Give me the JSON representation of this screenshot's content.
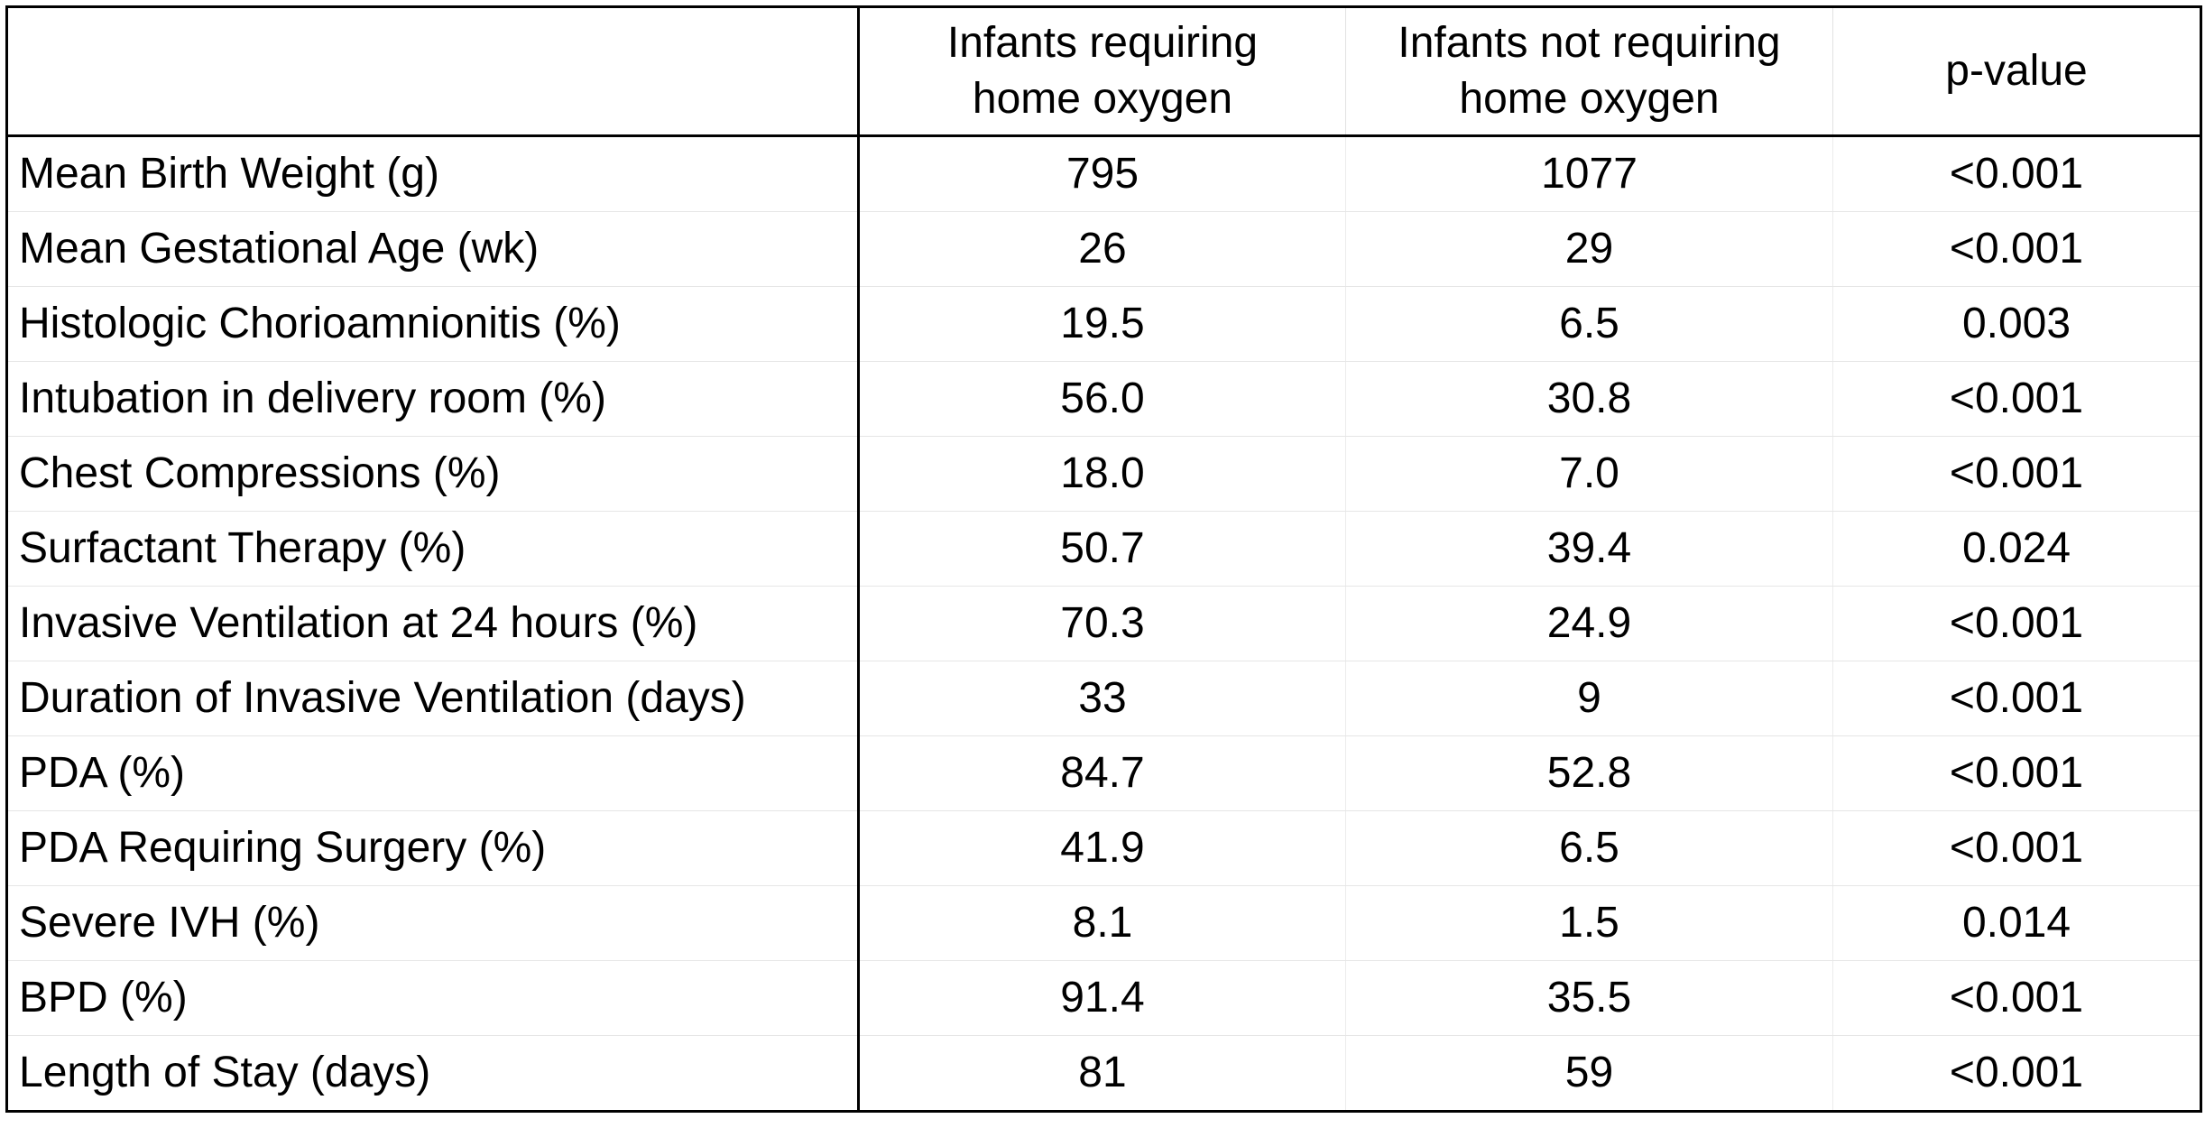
{
  "table": {
    "headers": [
      "",
      "Infants requiring\nhome oxygen",
      "Infants not requiring\nhome oxygen",
      "p-value"
    ],
    "rows": [
      [
        "Mean Birth Weight (g)",
        "795",
        "1077",
        "<0.001"
      ],
      [
        "Mean Gestational Age (wk)",
        "26",
        "29",
        "<0.001"
      ],
      [
        "Histologic Chorioamnionitis (%)",
        "19.5",
        "6.5",
        "0.003"
      ],
      [
        "Intubation in delivery room (%)",
        "56.0",
        "30.8",
        "<0.001"
      ],
      [
        "Chest Compressions (%)",
        "18.0",
        "7.0",
        "<0.001"
      ],
      [
        "Surfactant Therapy (%)",
        "50.7",
        "39.4",
        "0.024"
      ],
      [
        "Invasive Ventilation at 24 hours (%)",
        "70.3",
        "24.9",
        "<0.001"
      ],
      [
        "Duration of Invasive Ventilation (days)",
        "33",
        "9",
        "<0.001"
      ],
      [
        "PDA (%)",
        "84.7",
        "52.8",
        "<0.001"
      ],
      [
        "PDA Requiring Surgery (%)",
        "41.9",
        "6.5",
        "<0.001"
      ],
      [
        "Severe IVH (%)",
        "8.1",
        "1.5",
        "0.014"
      ],
      [
        "BPD (%)",
        "91.4",
        "35.5",
        "<0.001"
      ],
      [
        "Length of Stay (days)",
        "81",
        "59",
        "<0.001"
      ]
    ]
  }
}
